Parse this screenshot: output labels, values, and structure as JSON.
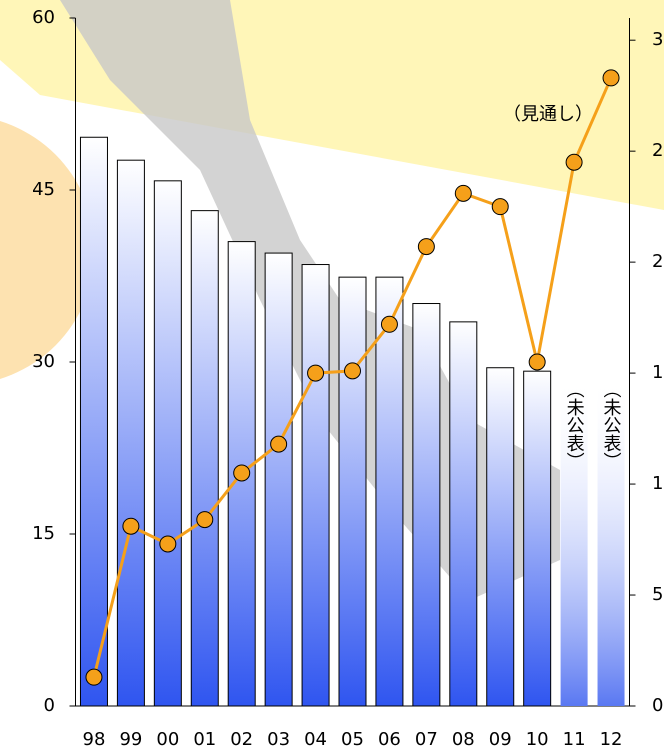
{
  "chart_data": {
    "type": "bar-line",
    "categories": [
      "98",
      "99",
      "00",
      "01",
      "02",
      "03",
      "04",
      "05",
      "06",
      "07",
      "08",
      "09",
      "10",
      "11",
      "12"
    ],
    "series": [
      {
        "type": "bar",
        "color": "#3355ee",
        "values": [
          49.6,
          47.6,
          45.8,
          43.2,
          40.5,
          39.5,
          38.5,
          37.4,
          37.4,
          35.1,
          33.5,
          29.5,
          29.2,
          null,
          null
        ],
        "value_labels": [
          null,
          null,
          null,
          null,
          null,
          null,
          null,
          null,
          null,
          null,
          null,
          null,
          null,
          "（未公表）",
          "（未公表）"
        ]
      },
      {
        "type": "line",
        "axis": "y2",
        "color": "#f5a01a",
        "marker_color": "#f5a01a",
        "values": [
          1.3,
          8.1,
          7.3,
          8.4,
          10.5,
          11.8,
          15.0,
          15.1,
          17.2,
          20.7,
          23.1,
          22.5,
          15.5,
          24.5,
          28.3
        ],
        "value_labels": [
          null,
          null,
          null,
          null,
          null,
          null,
          null,
          null,
          null,
          null,
          null,
          null,
          null,
          null,
          "（見通し）"
        ]
      }
    ],
    "ylim": [
      0,
      60
    ],
    "yticks": [
      0,
      15,
      30,
      45,
      60
    ],
    "y2lim": [
      0,
      31
    ],
    "y2ticks": [
      0,
      5,
      10,
      15,
      20,
      25,
      30
    ]
  }
}
